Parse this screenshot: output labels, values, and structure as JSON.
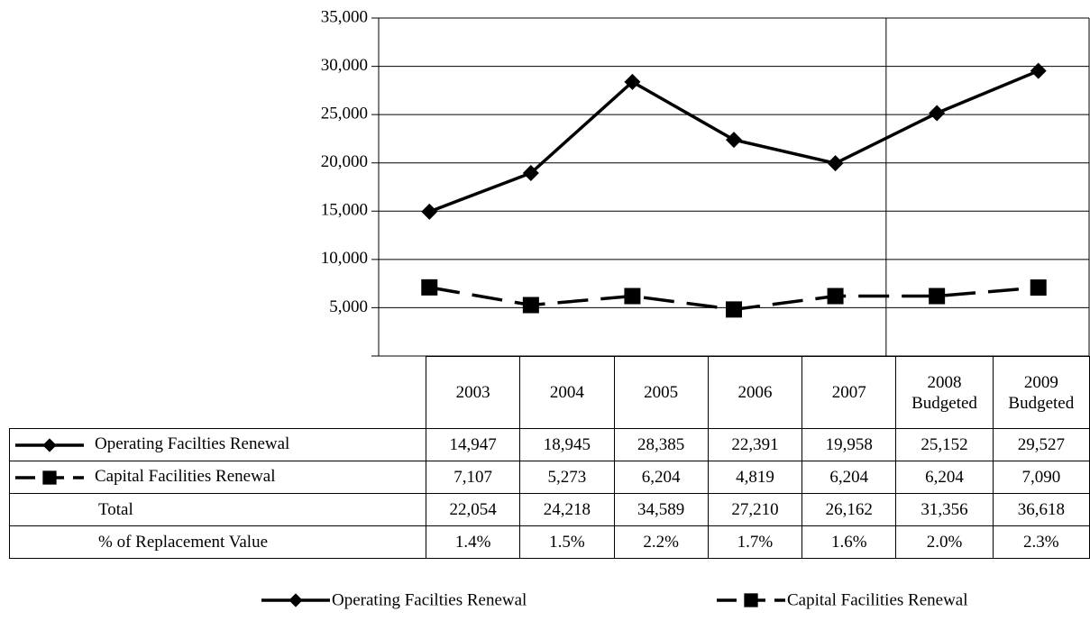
{
  "chart_data": {
    "type": "line",
    "categories": [
      "2003",
      "2004",
      "2005",
      "2006",
      "2007",
      "2008 Budgeted",
      "2009 Budgeted"
    ],
    "ylim": [
      0,
      35000
    ],
    "yticks": [
      {
        "value": 5000,
        "label": "5,000"
      },
      {
        "value": 10000,
        "label": "10,000"
      },
      {
        "value": 15000,
        "label": "15,000"
      },
      {
        "value": 20000,
        "label": "20,000"
      },
      {
        "value": 25000,
        "label": "25,000"
      },
      {
        "value": 30000,
        "label": "30,000"
      },
      {
        "value": 35000,
        "label": "35,000"
      }
    ],
    "grid": true,
    "series": [
      {
        "name": "Operating Facilties Renewal",
        "color": "#000000",
        "marker": "diamond",
        "dashed": false,
        "values": [
          14947,
          18945,
          28385,
          22391,
          19958,
          25152,
          29527
        ],
        "value_labels": [
          "14,947",
          "18,945",
          "28,385",
          "22,391",
          "19,958",
          "25,152",
          "29,527"
        ]
      },
      {
        "name": "Capital Facilities Renewal",
        "color": "#000000",
        "marker": "square",
        "dashed": true,
        "values": [
          7107,
          5273,
          6204,
          4819,
          6204,
          6204,
          7090
        ],
        "value_labels": [
          "7,107",
          "5,273",
          "6,204",
          "4,819",
          "6,204",
          "6,204",
          "7,090"
        ]
      }
    ],
    "data_table": [
      {
        "name": "Total",
        "values": [
          "22,054",
          "24,218",
          "34,589",
          "27,210",
          "26,162",
          "31,356",
          "36,618"
        ]
      },
      {
        "name": "% of Replacement Value",
        "values": [
          "1.4%",
          "1.5%",
          "2.2%",
          "1.7%",
          "1.6%",
          "2.0%",
          "2.3%"
        ]
      }
    ],
    "legend": "bottom"
  }
}
